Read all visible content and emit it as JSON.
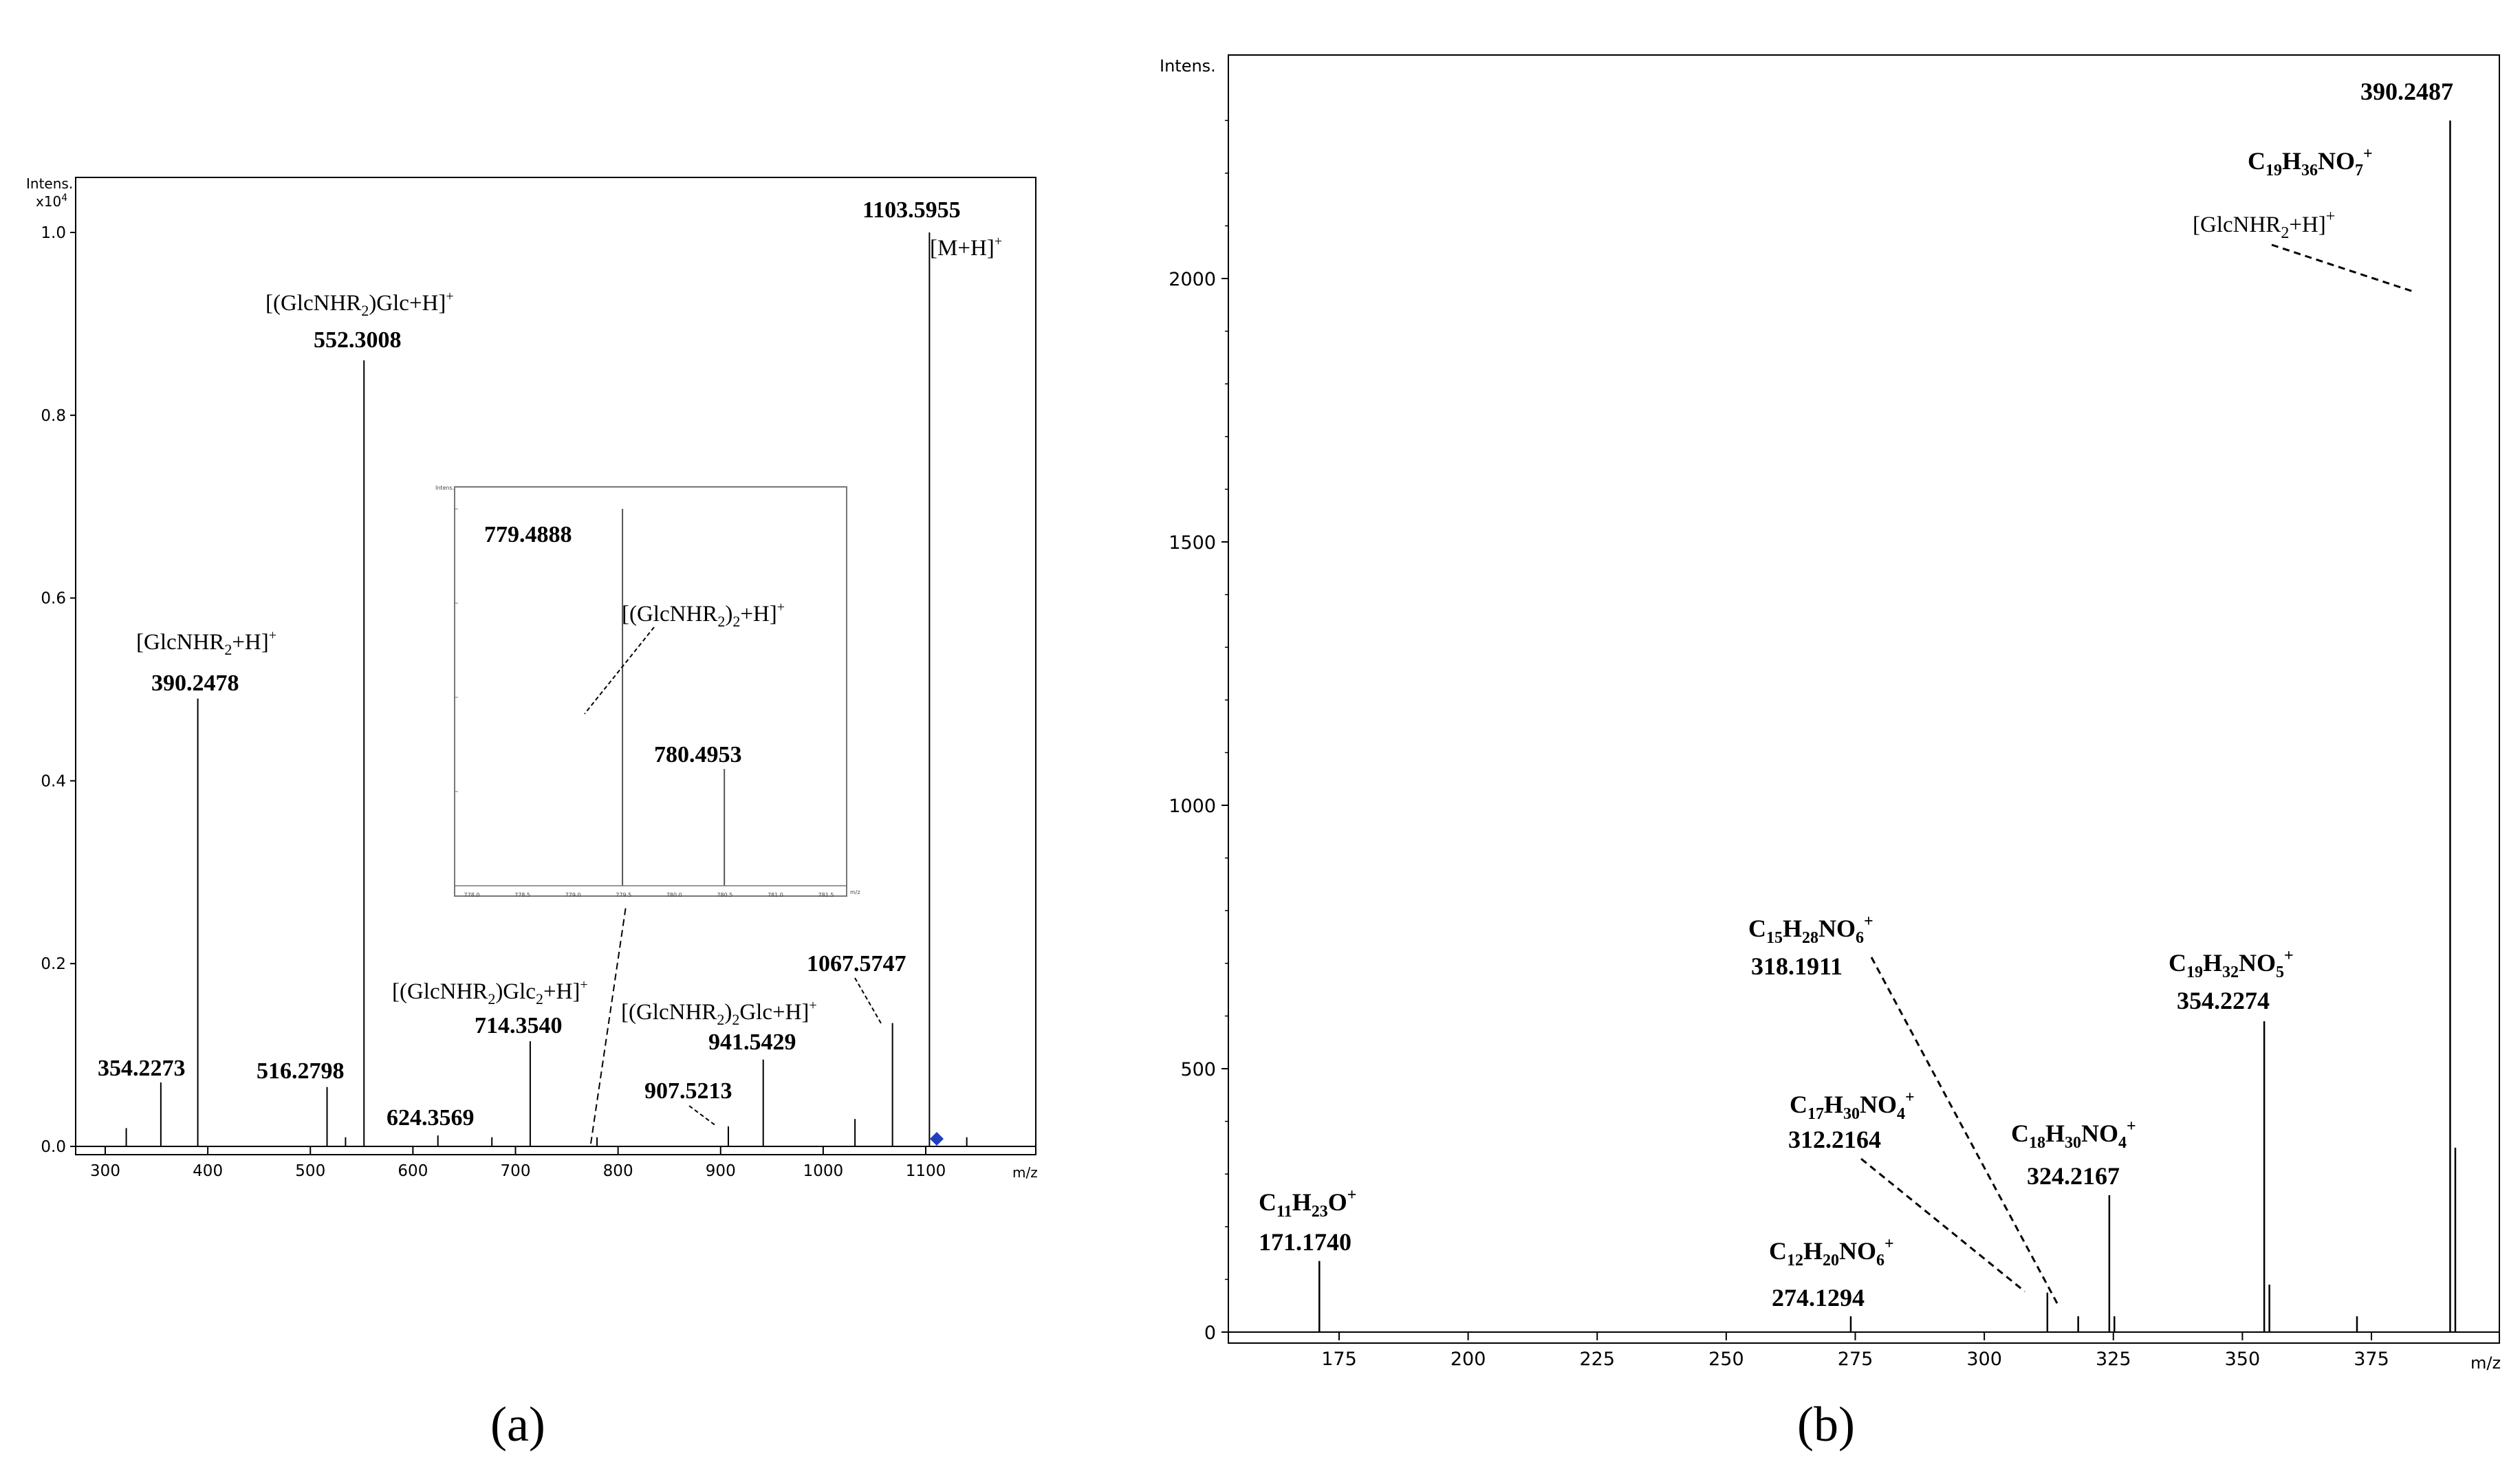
{
  "chart_data": [
    {
      "panel": "(a)",
      "type": "line",
      "ylabel": "Intens.",
      "y_multiplier": "x10",
      "y_multiplier_exp": "4",
      "xlabel": "m/z",
      "xlim": [
        275,
        640
      ],
      "ylim": [
        0,
        1.0
      ],
      "xticks": [
        "300",
        "400",
        "500",
        "600",
        "700",
        "800",
        "900",
        "1000",
        "1100"
      ],
      "yticks": [
        "0.0",
        "0.2",
        "0.4",
        "0.6",
        "0.8",
        "1.0"
      ],
      "peaks": [
        {
          "mz": 320.5,
          "intensity": 0.02
        },
        {
          "mz": 354.2273,
          "intensity": 0.07
        },
        {
          "mz": 390.2478,
          "intensity": 0.49
        },
        {
          "mz": 516.2798,
          "intensity": 0.065
        },
        {
          "mz": 534.3,
          "intensity": 0.01
        },
        {
          "mz": 552.3008,
          "intensity": 0.86
        },
        {
          "mz": 624.3569,
          "intensity": 0.012
        },
        {
          "mz": 677.0,
          "intensity": 0.01
        },
        {
          "mz": 714.354,
          "intensity": 0.115
        },
        {
          "mz": 779.4888,
          "intensity": 0.01
        },
        {
          "mz": 907.5213,
          "intensity": 0.022
        },
        {
          "mz": 941.5429,
          "intensity": 0.095
        },
        {
          "mz": 1031.0,
          "intensity": 0.03
        },
        {
          "mz": 1067.5747,
          "intensity": 0.135
        },
        {
          "mz": 1103.5955,
          "intensity": 1.0
        },
        {
          "mz": 1140.0,
          "intensity": 0.01
        }
      ],
      "peak_labels": [
        "1103.5955",
        "552.3008",
        "390.2478",
        "354.2273",
        "516.2798",
        "624.3569",
        "714.3540",
        "907.5213",
        "941.5429",
        "1067.5747"
      ],
      "ion_labels": {
        "m_h": "[M+H]",
        "glcnhr2_glc": "[(GlcNHR2)Glc+H]",
        "glcnhr2": "[GlcNHR2+H]",
        "glcnhr2_glc2": "[(GlcNHR2)Glc2+H]",
        "glcnhr2_2_glc": "[(GlcNHR2)2Glc+H]"
      },
      "inset": {
        "ylabel": "Intens.",
        "peaks": [
          {
            "mz": 779.4888,
            "intensity": 1.0
          },
          {
            "mz": 780.4953,
            "intensity": 0.31
          }
        ],
        "peak_labels": [
          "779.4888",
          "780.4953"
        ],
        "ion_label": "[(GlcNHR2)2+H]",
        "xticks": [
          "778.0",
          "778.5",
          "779.0",
          "779.5",
          "780.0",
          "780.5",
          "781.0",
          "781.5"
        ],
        "xlabel": "m/z"
      },
      "marker_color": "#1f3fbf"
    },
    {
      "panel": "(b)",
      "type": "line",
      "ylabel": "Intens.",
      "xlabel": "m/z",
      "xlim": [
        155,
        390
      ],
      "ylim": [
        0,
        2400
      ],
      "xticks": [
        "175",
        "200",
        "225",
        "250",
        "275",
        "300",
        "325",
        "350",
        "375"
      ],
      "yticks": [
        "0",
        "500",
        "1000",
        "1500",
        "2000"
      ],
      "peaks": [
        {
          "mz": 171.174,
          "intensity": 135
        },
        {
          "mz": 274.1294,
          "intensity": 30
        },
        {
          "mz": 312.2164,
          "intensity": 75
        },
        {
          "mz": 318.1911,
          "intensity": 30
        },
        {
          "mz": 324.2167,
          "intensity": 260
        },
        {
          "mz": 325.2,
          "intensity": 30
        },
        {
          "mz": 354.2274,
          "intensity": 590
        },
        {
          "mz": 355.23,
          "intensity": 90
        },
        {
          "mz": 372.2,
          "intensity": 30
        },
        {
          "mz": 390.2487,
          "intensity": 2300
        },
        {
          "mz": 391.25,
          "intensity": 350
        }
      ],
      "peak_labels": [
        "390.2487",
        "354.2274",
        "324.2167",
        "318.1911",
        "312.2164",
        "274.1294",
        "171.1740"
      ],
      "ion_labels": {
        "c19h36no7": "C19H36NO7",
        "glcnhr2": "[GlcNHR2+H]",
        "c19h32no5": "C19H32NO5",
        "c18h30no4": "C18H30NO4",
        "c15h28no6": "C15H28NO6",
        "c17h30no4": "C17H30NO4",
        "c12h20no6": "C12H20NO6",
        "c11h23o": "C11H23O"
      }
    }
  ]
}
